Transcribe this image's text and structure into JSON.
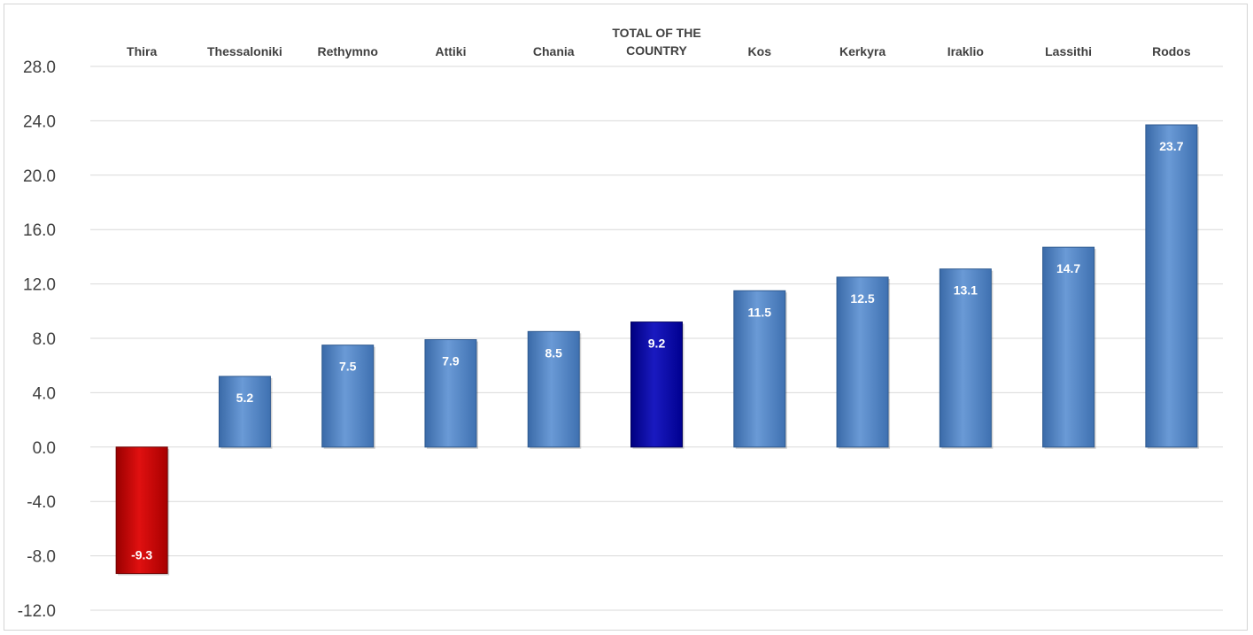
{
  "chart_data": {
    "type": "bar",
    "categories": [
      "Thira",
      "Thessaloniki",
      "Rethymno",
      "Attiki",
      "Chania",
      "TOTAL OF THE COUNTRY",
      "Kos",
      "Kerkyra",
      "Iraklio",
      "Lassithi",
      "Rodos"
    ],
    "category_label_lines": [
      [
        "Thira"
      ],
      [
        "Thessaloniki"
      ],
      [
        "Rethymno"
      ],
      [
        "Attiki"
      ],
      [
        "Chania"
      ],
      [
        "TOTAL OF THE",
        "COUNTRY"
      ],
      [
        "Kos"
      ],
      [
        "Kerkyra"
      ],
      [
        "Iraklio"
      ],
      [
        "Lassithi"
      ],
      [
        "Rodos"
      ]
    ],
    "values": [
      -9.3,
      5.2,
      7.5,
      7.9,
      8.5,
      9.2,
      11.5,
      12.5,
      13.1,
      14.7,
      23.7
    ],
    "data_labels": [
      "-9.3",
      "5.2",
      "7.5",
      "7.9",
      "8.5",
      "9.2",
      "11.5",
      "12.5",
      "13.1",
      "14.7",
      "23.7"
    ],
    "ylim": [
      -12.0,
      28.0
    ],
    "ytick_values": [
      28,
      24,
      20,
      16,
      12,
      8,
      4,
      0,
      -4,
      -8,
      -12
    ],
    "ytick_labels": [
      "28.0",
      "24.0",
      "20.0",
      "16.0",
      "12.0",
      "8.0",
      "4.0",
      "0.0",
      "-4.0",
      "-8.0",
      "-12.0"
    ],
    "grid": true,
    "category_axis_position": "top",
    "legend": "none",
    "colors": {
      "default": "#4a7ebf",
      "negative": "#c00000",
      "highlight": "#0000a0",
      "gridline": "#d9d9d9",
      "text": "#404040"
    }
  }
}
